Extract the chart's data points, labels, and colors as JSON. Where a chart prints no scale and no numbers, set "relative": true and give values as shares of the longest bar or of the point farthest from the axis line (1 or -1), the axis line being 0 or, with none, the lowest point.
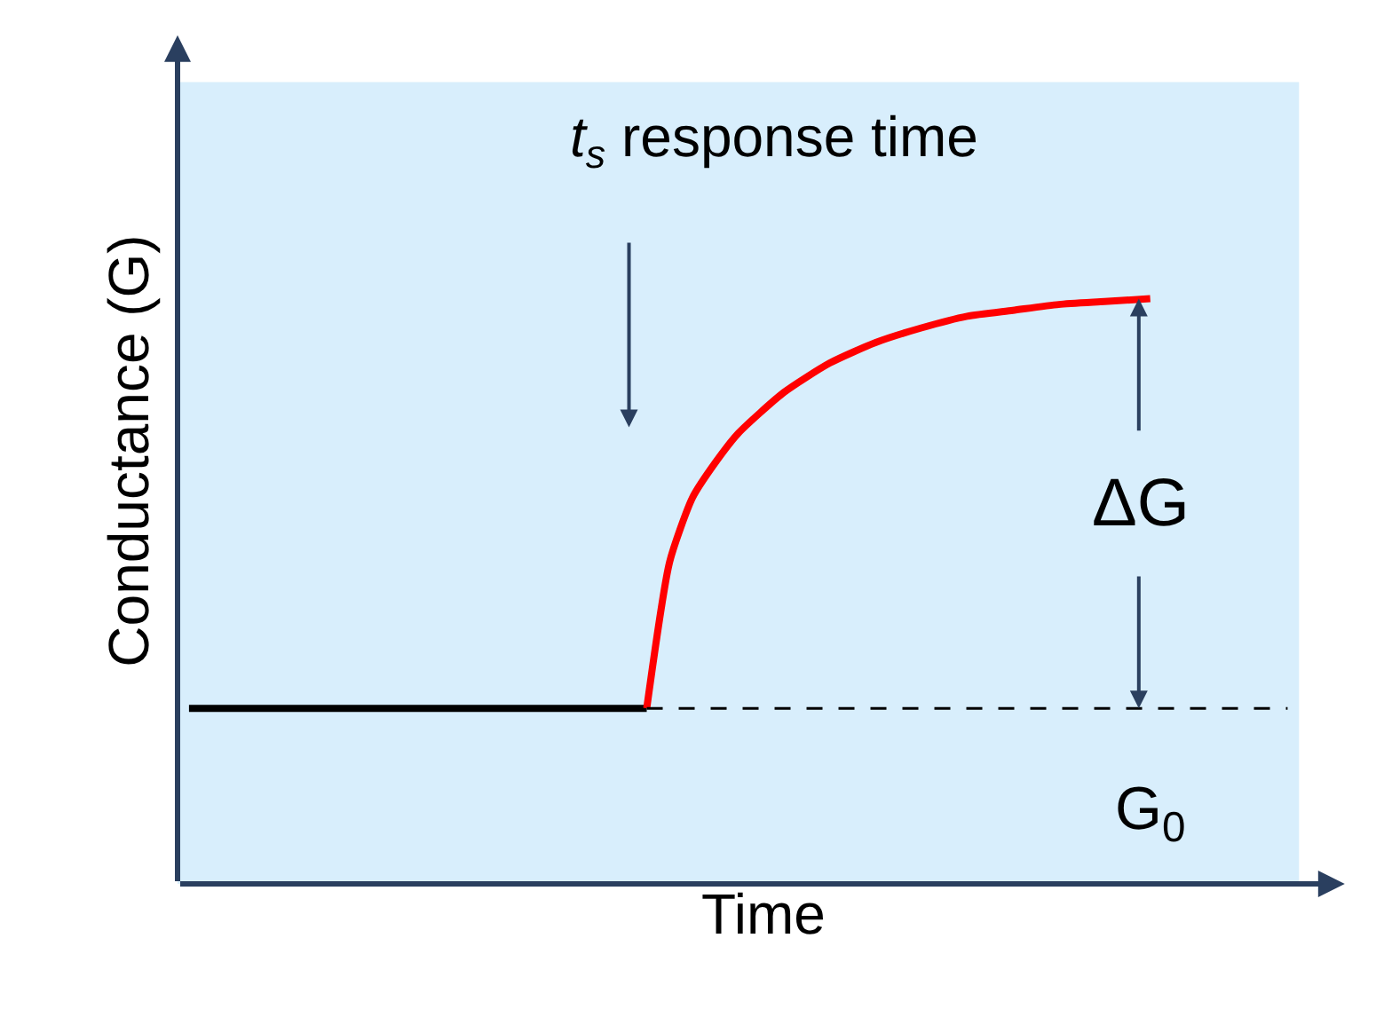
{
  "chart_data": {
    "type": "line",
    "relative": true,
    "xlabel": "Time",
    "ylabel": "Conductance (G)",
    "categories": [
      null,
      null,
      null,
      null,
      null,
      null,
      null,
      null,
      null,
      null,
      null,
      null,
      null,
      null,
      null,
      null,
      null,
      null,
      null,
      null,
      null,
      null,
      null,
      null,
      null,
      null,
      null,
      null,
      null,
      null,
      null,
      null,
      null,
      null,
      null,
      null,
      null,
      null,
      null,
      null,
      null,
      null,
      null,
      null,
      null,
      null,
      null,
      null,
      null
    ],
    "series": [
      {
        "color": "#000000",
        "line_style": "solid",
        "values": [
          0.3,
          null,
          null,
          null,
          null,
          null,
          null,
          null,
          null,
          null,
          null,
          null,
          null,
          null,
          null,
          null,
          null,
          null,
          null,
          null,
          0.3,
          null,
          null,
          null,
          null,
          null,
          null,
          null,
          null,
          null,
          null,
          null,
          null,
          null,
          null,
          null,
          null,
          null,
          null,
          null,
          null,
          null,
          null,
          null,
          null,
          null,
          null,
          null,
          null
        ]
      },
      {
        "color": "#ff0000",
        "line_style": "solid",
        "values": [
          null,
          null,
          null,
          null,
          null,
          null,
          null,
          null,
          null,
          null,
          null,
          null,
          null,
          null,
          null,
          null,
          null,
          null,
          null,
          null,
          0.3,
          0.55,
          0.66,
          0.72,
          0.77,
          null,
          0.84,
          null,
          0.89,
          null,
          0.925,
          null,
          0.95,
          null,
          0.97,
          null,
          0.98,
          null,
          0.99,
          null,
          0.995,
          null,
          1,
          null,
          null,
          null,
          null,
          null,
          null
        ]
      },
      {
        "color": "#000000",
        "line_style": "dashed",
        "values": [
          null,
          null,
          null,
          null,
          null,
          null,
          null,
          null,
          null,
          null,
          null,
          null,
          null,
          null,
          null,
          null,
          null,
          null,
          null,
          null,
          0.3,
          null,
          null,
          null,
          null,
          null,
          null,
          null,
          null,
          null,
          null,
          null,
          null,
          null,
          null,
          null,
          null,
          null,
          null,
          null,
          null,
          null,
          null,
          null,
          null,
          null,
          null,
          null,
          0.3
        ]
      }
    ],
    "annotations": [
      "t$_{s}$ response time",
      "ΔG",
      "G$_{0}$"
    ],
    "grid": false,
    "marker": "none"
  }
}
